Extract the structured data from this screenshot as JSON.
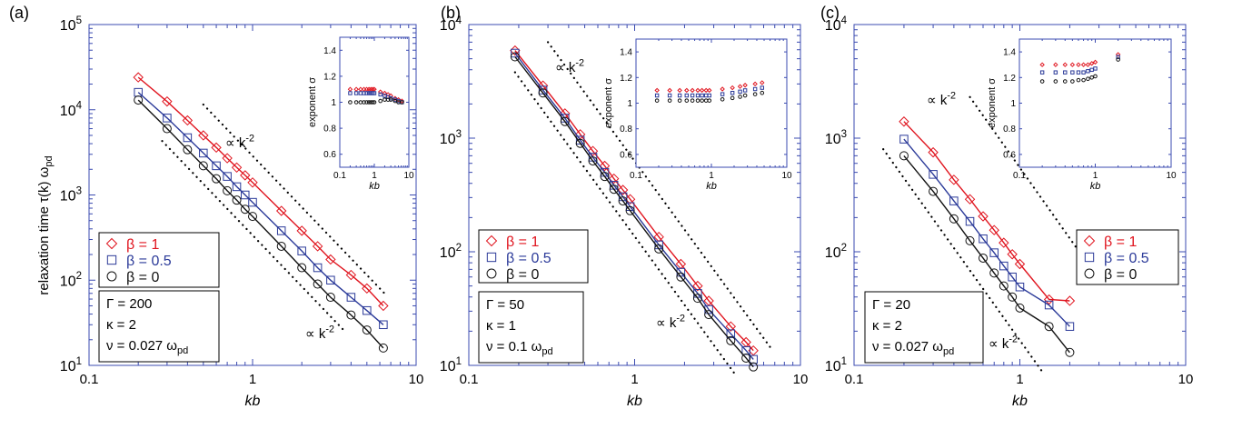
{
  "figure": {
    "ylabel": "relaxation time  τ(k) ω",
    "ylabel_sub": "pd",
    "proportional_label": "∝ k",
    "proportional_exp": "-2"
  },
  "colors": {
    "beta1": "#e0141e",
    "beta05": "#2b3a99",
    "beta0": "#111111",
    "frame": "#3b4bb0"
  },
  "chart_data": [
    {
      "type": "line",
      "panel": "(a)",
      "xscale": "log",
      "yscale": "log",
      "xlim": [
        0.1,
        10
      ],
      "ylim": [
        10,
        100000
      ],
      "xlabel": "kb",
      "ylabel": "relaxation time τ(k) ωpd",
      "xtick_labels": [
        "0.1",
        "1",
        "10"
      ],
      "ytick_labels": [
        [
          "10",
          "1"
        ],
        [
          "10",
          "2"
        ],
        [
          "10",
          "3"
        ],
        [
          "10",
          "4"
        ],
        [
          "10",
          "5"
        ]
      ],
      "params": [
        "Γ = 200",
        "κ = 2",
        "ν = 0.027 ω"
      ],
      "params_sub": "pd",
      "legend_placement": "lower-left",
      "series": [
        {
          "name": "β = 1",
          "color": "#e0141e",
          "marker": "diamond",
          "x": [
            0.2,
            0.3,
            0.4,
            0.5,
            0.6,
            0.7,
            0.8,
            0.9,
            1.0,
            1.5,
            2,
            2.5,
            3,
            4,
            5,
            6.3
          ],
          "y": [
            24000,
            12500,
            7500,
            5000,
            3600,
            2700,
            2100,
            1700,
            1400,
            650,
            380,
            250,
            175,
            115,
            80,
            50
          ]
        },
        {
          "name": "β = 0.5",
          "color": "#2b3a99",
          "marker": "square",
          "x": [
            0.2,
            0.3,
            0.4,
            0.5,
            0.6,
            0.7,
            0.8,
            0.9,
            1.0,
            1.5,
            2,
            2.5,
            3,
            4,
            5,
            6.3
          ],
          "y": [
            16000,
            8000,
            4700,
            3100,
            2200,
            1650,
            1250,
            1000,
            820,
            380,
            220,
            140,
            100,
            63,
            44,
            30
          ]
        },
        {
          "name": "β = 0",
          "color": "#111111",
          "marker": "circle",
          "x": [
            0.2,
            0.3,
            0.4,
            0.5,
            0.6,
            0.7,
            0.8,
            0.9,
            1.0,
            1.5,
            2,
            2.5,
            3,
            4,
            5,
            6.3
          ],
          "y": [
            13000,
            6000,
            3400,
            2200,
            1550,
            1120,
            870,
            680,
            560,
            250,
            140,
            90,
            63,
            39,
            26,
            16
          ]
        }
      ],
      "guides": [
        {
          "label": "∝ k-2",
          "x": [
            0.5,
            6.5
          ],
          "y": [
            11500,
            68
          ]
        },
        {
          "label": "∝ k-2",
          "x": [
            0.28,
            3.6
          ],
          "y": [
            4300,
            26
          ]
        }
      ],
      "inset": {
        "type": "scatter",
        "xscale": "log",
        "xlim": [
          0.1,
          10
        ],
        "ylim": [
          0.5,
          1.5
        ],
        "xlabel": "kb",
        "ylabel": "exponent   σ",
        "xtick_labels": [
          "0.1",
          "1",
          "10"
        ],
        "ytick_labels": [
          "0.6",
          "0.8",
          "1",
          "1.2",
          "1.4"
        ],
        "series": [
          {
            "name": "β = 1",
            "x": [
              0.2,
              0.3,
              0.4,
              0.5,
              0.6,
              0.7,
              0.8,
              0.9,
              1.0,
              1.5,
              2,
              2.5,
              3,
              4,
              5,
              6.3
            ],
            "y": [
              1.1,
              1.1,
              1.1,
              1.1,
              1.1,
              1.1,
              1.1,
              1.1,
              1.1,
              1.08,
              1.07,
              1.06,
              1.05,
              1.03,
              1.02,
              1.01
            ]
          },
          {
            "name": "β = 0.5",
            "x": [
              0.2,
              0.3,
              0.4,
              0.5,
              0.6,
              0.7,
              0.8,
              0.9,
              1.0,
              1.5,
              2,
              2.5,
              3,
              4,
              5,
              6.3
            ],
            "y": [
              1.07,
              1.07,
              1.07,
              1.07,
              1.07,
              1.07,
              1.07,
              1.07,
              1.07,
              1.06,
              1.05,
              1.04,
              1.03,
              1.02,
              1.01,
              1.0
            ]
          },
          {
            "name": "β = 0",
            "x": [
              0.2,
              0.3,
              0.4,
              0.5,
              0.6,
              0.7,
              0.8,
              0.9,
              1.0,
              1.5,
              2,
              2.5,
              3,
              4,
              5,
              6.3
            ],
            "y": [
              1.0,
              1.0,
              1.0,
              1.0,
              1.0,
              1.0,
              1.0,
              1.0,
              1.0,
              1.01,
              1.02,
              1.02,
              1.02,
              1.01,
              1.0,
              1.0
            ]
          }
        ]
      }
    },
    {
      "type": "line",
      "panel": "(b)",
      "xscale": "log",
      "yscale": "log",
      "xlim": [
        0.1,
        10
      ],
      "ylim": [
        10,
        10000
      ],
      "xlabel": "kb",
      "xtick_labels": [
        "0.1",
        "1",
        "10"
      ],
      "ytick_labels": [
        [
          "10",
          "1"
        ],
        [
          "10",
          "2"
        ],
        [
          "10",
          "3"
        ],
        [
          "10",
          "4"
        ]
      ],
      "params": [
        "Γ = 50",
        "κ = 1",
        "ν = 0.1 ω"
      ],
      "params_sub": "pd",
      "legend_placement": "lower-left",
      "series": [
        {
          "name": "β = 1",
          "color": "#e0141e",
          "marker": "diamond",
          "x": [
            0.19,
            0.28,
            0.38,
            0.47,
            0.56,
            0.66,
            0.75,
            0.85,
            0.94,
            1.4,
            1.9,
            2.4,
            2.8,
            3.8,
            4.7,
            5.2
          ],
          "y": [
            5900,
            2900,
            1650,
            1080,
            770,
            570,
            440,
            350,
            290,
            135,
            78,
            50,
            37,
            22,
            16,
            13.5
          ]
        },
        {
          "name": "β = 0.5",
          "color": "#2b3a99",
          "marker": "square",
          "x": [
            0.19,
            0.28,
            0.38,
            0.47,
            0.56,
            0.66,
            0.75,
            0.85,
            0.94,
            1.4,
            1.9,
            2.4,
            2.8,
            3.8,
            4.7,
            5.2
          ],
          "y": [
            5600,
            2650,
            1500,
            960,
            680,
            500,
            385,
            305,
            250,
            115,
            66,
            43,
            31,
            19,
            13.5,
            11.3
          ]
        },
        {
          "name": "β = 0",
          "color": "#111111",
          "marker": "circle",
          "x": [
            0.19,
            0.28,
            0.38,
            0.47,
            0.56,
            0.66,
            0.75,
            0.85,
            0.94,
            1.4,
            1.9,
            2.4,
            2.8,
            3.8,
            4.7,
            5.2
          ],
          "y": [
            5200,
            2500,
            1400,
            900,
            630,
            460,
            355,
            280,
            230,
            106,
            60,
            39,
            28,
            16.5,
            11.6,
            9.7
          ]
        }
      ],
      "guides": [
        {
          "label": "∝ k-2",
          "x": [
            0.3,
            6.8
          ],
          "y": [
            7000,
            13.5
          ]
        },
        {
          "label": "∝ k-2",
          "x": [
            0.19,
            4.0
          ],
          "y": [
            3800,
            8.5
          ]
        }
      ],
      "inset": {
        "type": "scatter",
        "xscale": "log",
        "xlim": [
          0.1,
          10
        ],
        "ylim": [
          0.5,
          1.5
        ],
        "xlabel": "kb",
        "ylabel": "exponent   σ",
        "xtick_labels": [
          "0.1",
          "1",
          "10"
        ],
        "ytick_labels": [
          "0.6",
          "0.8",
          "1",
          "1.2",
          "1.4"
        ],
        "series": [
          {
            "name": "β = 1",
            "x": [
              0.19,
              0.28,
              0.38,
              0.47,
              0.56,
              0.66,
              0.75,
              0.85,
              0.94,
              1.4,
              1.9,
              2.4,
              2.8,
              3.8,
              4.7
            ],
            "y": [
              1.1,
              1.1,
              1.1,
              1.1,
              1.1,
              1.1,
              1.1,
              1.1,
              1.1,
              1.11,
              1.12,
              1.13,
              1.14,
              1.15,
              1.16
            ]
          },
          {
            "name": "β = 0.5",
            "x": [
              0.19,
              0.28,
              0.38,
              0.47,
              0.56,
              0.66,
              0.75,
              0.85,
              0.94,
              1.4,
              1.9,
              2.4,
              2.8,
              3.8,
              4.7
            ],
            "y": [
              1.06,
              1.06,
              1.06,
              1.06,
              1.06,
              1.06,
              1.06,
              1.06,
              1.06,
              1.07,
              1.08,
              1.09,
              1.1,
              1.11,
              1.12
            ]
          },
          {
            "name": "β = 0",
            "x": [
              0.19,
              0.28,
              0.38,
              0.47,
              0.56,
              0.66,
              0.75,
              0.85,
              0.94,
              1.4,
              1.9,
              2.4,
              2.8,
              3.8,
              4.7
            ],
            "y": [
              1.02,
              1.02,
              1.02,
              1.02,
              1.02,
              1.02,
              1.02,
              1.02,
              1.02,
              1.03,
              1.04,
              1.05,
              1.06,
              1.07,
              1.08
            ]
          }
        ]
      }
    },
    {
      "type": "line",
      "panel": "(c)",
      "xscale": "log",
      "yscale": "log",
      "xlim": [
        0.1,
        10
      ],
      "ylim": [
        10,
        10000
      ],
      "xlabel": "kb",
      "xtick_labels": [
        "0.1",
        "1",
        "10"
      ],
      "ytick_labels": [
        [
          "10",
          "1"
        ],
        [
          "10",
          "2"
        ],
        [
          "10",
          "3"
        ],
        [
          "10",
          "4"
        ]
      ],
      "params": [
        "Γ = 20",
        "κ = 2",
        "ν = 0.027 ω"
      ],
      "params_sub": "pd",
      "legend_placement": "lower-right",
      "series": [
        {
          "name": "β = 1",
          "color": "#e0141e",
          "marker": "diamond",
          "x": [
            0.2,
            0.3,
            0.4,
            0.5,
            0.6,
            0.7,
            0.8,
            0.9,
            1.0,
            1.5,
            2
          ],
          "y": [
            1400,
            750,
            430,
            290,
            205,
            155,
            120,
            95,
            78,
            38,
            37
          ]
        },
        {
          "name": "β = 0.5",
          "color": "#2b3a99",
          "marker": "square",
          "x": [
            0.2,
            0.3,
            0.4,
            0.5,
            0.6,
            0.7,
            0.8,
            0.9,
            1.0,
            1.5,
            2
          ],
          "y": [
            980,
            480,
            280,
            185,
            130,
            98,
            75,
            60,
            49,
            34,
            22
          ]
        },
        {
          "name": "β = 0",
          "color": "#111111",
          "marker": "circle",
          "x": [
            0.2,
            0.3,
            0.4,
            0.5,
            0.6,
            0.7,
            0.8,
            0.9,
            1.0,
            1.5,
            2
          ],
          "y": [
            700,
            340,
            195,
            125,
            88,
            65,
            50,
            40,
            32,
            22,
            13
          ]
        }
      ],
      "guides": [
        {
          "label": "∝ k-2",
          "x": [
            0.5,
            2.4
          ],
          "y": [
            2300,
            90
          ]
        },
        {
          "label": "∝ k-2",
          "x": [
            0.15,
            1.35
          ],
          "y": [
            800,
            9
          ]
        }
      ],
      "inset": {
        "type": "scatter",
        "xscale": "log",
        "xlim": [
          0.1,
          10
        ],
        "ylim": [
          0.5,
          1.5
        ],
        "xlabel": "kb",
        "ylabel": "exponent   σ",
        "xtick_labels": [
          "0.1",
          "1",
          "10"
        ],
        "ytick_labels": [
          "0.6",
          "0.8",
          "1",
          "1.2",
          "1.4"
        ],
        "series": [
          {
            "name": "β = 1",
            "x": [
              0.2,
              0.3,
              0.4,
              0.5,
              0.6,
              0.7,
              0.8,
              0.9,
              1.0,
              2
            ],
            "y": [
              1.3,
              1.3,
              1.3,
              1.3,
              1.3,
              1.3,
              1.3,
              1.31,
              1.32,
              1.38
            ]
          },
          {
            "name": "β = 0.5",
            "x": [
              0.2,
              0.3,
              0.4,
              0.5,
              0.6,
              0.7,
              0.8,
              0.9,
              1.0,
              2
            ],
            "y": [
              1.24,
              1.24,
              1.24,
              1.24,
              1.24,
              1.24,
              1.25,
              1.26,
              1.27,
              1.36
            ]
          },
          {
            "name": "β = 0",
            "x": [
              0.2,
              0.3,
              0.4,
              0.5,
              0.6,
              0.7,
              0.8,
              0.9,
              1.0,
              2
            ],
            "y": [
              1.17,
              1.17,
              1.17,
              1.17,
              1.18,
              1.18,
              1.19,
              1.2,
              1.21,
              1.34
            ]
          }
        ]
      }
    }
  ]
}
